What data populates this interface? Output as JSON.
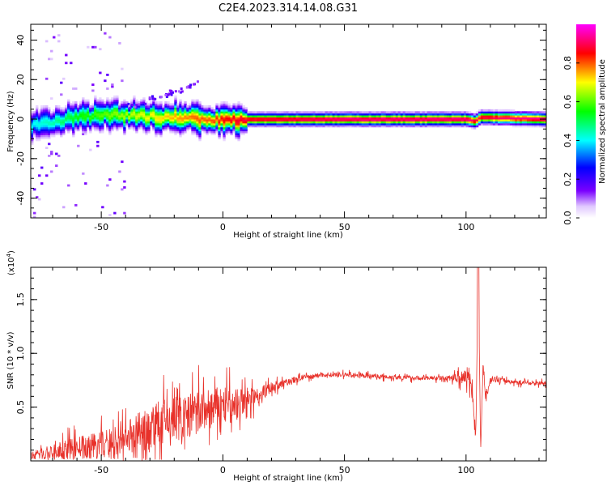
{
  "title": "C2E4.2023.314.14.08.G31",
  "chart_data": [
    {
      "type": "heatmap",
      "xlabel": "Height of straight line (km)",
      "ylabel": "Frequency (Hz)",
      "xlim": [
        -79,
        133
      ],
      "ylim": [
        -50,
        48
      ],
      "xticks": [
        -50,
        0,
        50,
        100
      ],
      "xtick_labels": [
        "-50",
        "0",
        "50",
        "100"
      ],
      "yticks": [
        -40,
        -20,
        0,
        20,
        40
      ],
      "ytick_labels": [
        "-40",
        "-20",
        "0",
        "20",
        "40"
      ],
      "colorbar": {
        "label": "Normalized spectral amplitude",
        "range": [
          0,
          1
        ],
        "ticks": [
          0.0,
          0.2,
          0.4,
          0.6,
          0.8
        ],
        "tick_labels": [
          "0.0",
          "0.2",
          "0.4",
          "0.6",
          "0.8"
        ],
        "colormap": [
          "#ffffff",
          "#7a00ff",
          "#0000ff",
          "#00ffff",
          "#00ff00",
          "#ffff00",
          "#ff0000",
          "#ff00ff"
        ]
      },
      "ridge": [
        {
          "x": -79,
          "y": -3,
          "amp": 0.4
        },
        {
          "x": -70,
          "y": -1,
          "amp": 0.45
        },
        {
          "x": -60,
          "y": 1,
          "amp": 0.55
        },
        {
          "x": -50,
          "y": 2,
          "amp": 0.6
        },
        {
          "x": -40,
          "y": 2,
          "amp": 0.65
        },
        {
          "x": -30,
          "y": 1.5,
          "amp": 0.7
        },
        {
          "x": -20,
          "y": 1,
          "amp": 0.75
        },
        {
          "x": -10,
          "y": 0.5,
          "amp": 0.8
        },
        {
          "x": -5,
          "y": -1,
          "amp": 0.8
        },
        {
          "x": 0,
          "y": 0,
          "amp": 0.85
        },
        {
          "x": 10,
          "y": 0,
          "amp": 0.9
        },
        {
          "x": 50,
          "y": 0,
          "amp": 0.95
        },
        {
          "x": 100,
          "y": 0,
          "amp": 0.95
        },
        {
          "x": 104,
          "y": -1,
          "amp": 0.9
        },
        {
          "x": 106,
          "y": 1,
          "amp": 0.9
        },
        {
          "x": 133,
          "y": 0,
          "amp": 0.95
        }
      ]
    },
    {
      "type": "line",
      "xlabel": "Height of straight line (km)",
      "ylabel": "SNR (10 * v/v)",
      "y_multiplier": "(x10",
      "y_multiplier_exponent": "4",
      "xlim": [
        -79,
        133
      ],
      "ylim": [
        0,
        1.8
      ],
      "xticks": [
        -50,
        0,
        50,
        100
      ],
      "xtick_labels": [
        "-50",
        "0",
        "50",
        "100"
      ],
      "yticks": [
        0.5,
        1.0,
        1.5
      ],
      "ytick_labels": [
        "0.5",
        "1.0",
        "1.5"
      ],
      "color": "#e8312a",
      "series": [
        {
          "x": [
            -79,
            -70,
            -60,
            -50,
            -45,
            -40,
            -35,
            -30,
            -25,
            -20,
            -15,
            -10,
            -5,
            0,
            5,
            10,
            15,
            20,
            25,
            30,
            35,
            40,
            50,
            60,
            70,
            80,
            90,
            95,
            98,
            100,
            102,
            104,
            105,
            106,
            107,
            108,
            110,
            115,
            120,
            133
          ],
          "y": [
            0.05,
            0.08,
            0.12,
            0.15,
            0.18,
            0.22,
            0.25,
            0.3,
            0.35,
            0.4,
            0.4,
            0.45,
            0.48,
            0.52,
            0.5,
            0.56,
            0.62,
            0.68,
            0.72,
            0.76,
            0.78,
            0.8,
            0.8,
            0.79,
            0.78,
            0.77,
            0.77,
            0.77,
            0.78,
            0.8,
            0.78,
            0.2,
            1.8,
            0.1,
            0.9,
            0.6,
            0.76,
            0.75,
            0.73,
            0.72
          ],
          "noise": [
            0.05,
            0.1,
            0.15,
            0.18,
            0.22,
            0.26,
            0.28,
            0.3,
            0.3,
            0.32,
            0.3,
            0.3,
            0.28,
            0.25,
            0.22,
            0.15,
            0.1,
            0.07,
            0.05,
            0.04,
            0.03,
            0.03,
            0.03,
            0.03,
            0.03,
            0.03,
            0.03,
            0.04,
            0.1,
            0.12,
            0.15,
            0.05,
            0.02,
            0.02,
            0.05,
            0.05,
            0.04,
            0.03,
            0.03,
            0.03
          ]
        }
      ]
    }
  ]
}
